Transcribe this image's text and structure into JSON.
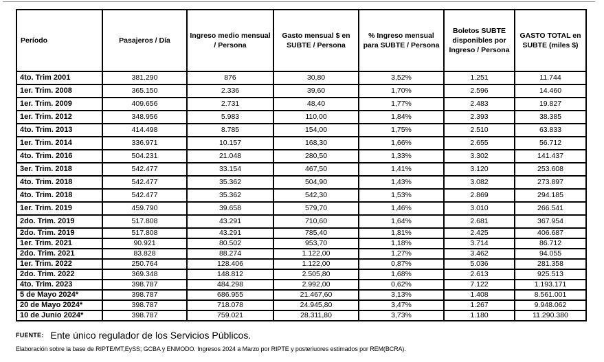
{
  "table": {
    "columns": [
      {
        "label": "Período"
      },
      {
        "label": "Pasajeros / Día"
      },
      {
        "label": "Ingreso medio mensual / Persona"
      },
      {
        "label": "Gasto mensual $ en SUBTE / Persona"
      },
      {
        "label": "% Ingreso mensual para SUBTE / Persona"
      },
      {
        "label": "Boletos SUBTE disponibles por Ingreso / Persona"
      },
      {
        "label": "GASTO TOTAL en SUBTE (miles $)"
      }
    ],
    "rows": [
      [
        "4to. Trim 2001",
        "381.290",
        "876",
        "30,80",
        "3,52%",
        "1.251",
        "11.744"
      ],
      [
        "1er. Trim. 2008",
        "365.150",
        "2.336",
        "39,60",
        "1,70%",
        "2.596",
        "14.460"
      ],
      [
        "1er. Trim. 2009",
        "409.656",
        "2.731",
        "48,40",
        "1,77%",
        "2.483",
        "19.827"
      ],
      [
        "1er. Trim. 2012",
        "348.956",
        "5.983",
        "110,00",
        "1,84%",
        "2.393",
        "38.385"
      ],
      [
        "4to. Trim. 2013",
        "414.498",
        "8.785",
        "154,00",
        "1,75%",
        "2.510",
        "63.833"
      ],
      [
        "1er. Trim. 2014",
        "336.971",
        "10.157",
        "168,30",
        "1,66%",
        "2.655",
        "56.712"
      ],
      [
        "4to. Trim. 2016",
        "504.231",
        "21.048",
        "280,50",
        "1,33%",
        "3.302",
        "141.437"
      ],
      [
        "3er. Trim. 2018",
        "542.477",
        "33.154",
        "467,50",
        "1,41%",
        "3.120",
        "253.608"
      ],
      [
        "4to. Trim. 2018",
        "542.477",
        "35.362",
        "504,90",
        "1,43%",
        "3.082",
        "273.897"
      ],
      [
        "4to. Trim. 2018",
        "542.477",
        "35.362",
        "542,30",
        "1,53%",
        "2.869",
        "294.185"
      ],
      [
        "1er. Trim. 2019",
        "459.790",
        "39.658",
        "579,70",
        "1,46%",
        "3.010",
        "266.541"
      ],
      [
        "2do. Trim. 2019",
        "517.808",
        "43.291",
        "710,60",
        "1,64%",
        "2.681",
        "367.954"
      ],
      [
        "2do. Trim. 2019",
        "517.808",
        "43.291",
        "785,40",
        "1,81%",
        "2.425",
        "406.687"
      ],
      [
        "1er. Trim. 2021",
        "90.921",
        "80.502",
        "953,70",
        "1,18%",
        "3.714",
        "86.712"
      ],
      [
        "2do. Trim. 2021",
        "83.828",
        "88.274",
        "1.122,00",
        "1,27%",
        "3.462",
        "94.055"
      ],
      [
        "1er. Trim. 2022",
        "250.764",
        "128.406",
        "1.122,00",
        "0,87%",
        "5.036",
        "281.358"
      ],
      [
        "2do. Trim. 2022",
        "369.348",
        "148.812",
        "2.505,80",
        "1,68%",
        "2.613",
        "925.513"
      ],
      [
        "4to. Trim. 2023",
        "398.787",
        "484.298",
        "2.992,00",
        "0,62%",
        "7.122",
        "1.193.171"
      ],
      [
        "5 de Mayo 2024*",
        "398.787",
        "686.955",
        "21.467,60",
        "3,13%",
        "1.408",
        "8.561.001"
      ],
      [
        "20 de Mayo 2024*",
        "398.787",
        "718.078",
        "24.945,80",
        "3,47%",
        "1.267",
        "9.948.062"
      ],
      [
        "10 de Junio 2024*",
        "398.787",
        "759.021",
        "28.311,80",
        "3,73%",
        "1.180",
        "11.290.380"
      ]
    ],
    "compact_rows_start_index": 12
  },
  "footer": {
    "source_label": "FUENTE:",
    "source_text": "Ente único regulador de los Servicios Públicos.",
    "note": "Elaboración  sobre la base de RIPTE/MT,EySS; GCBA y ENMODO. Ingresos 2024 a Marzo por RIPTE y posteriuores estimados por REM(BCRA)."
  }
}
